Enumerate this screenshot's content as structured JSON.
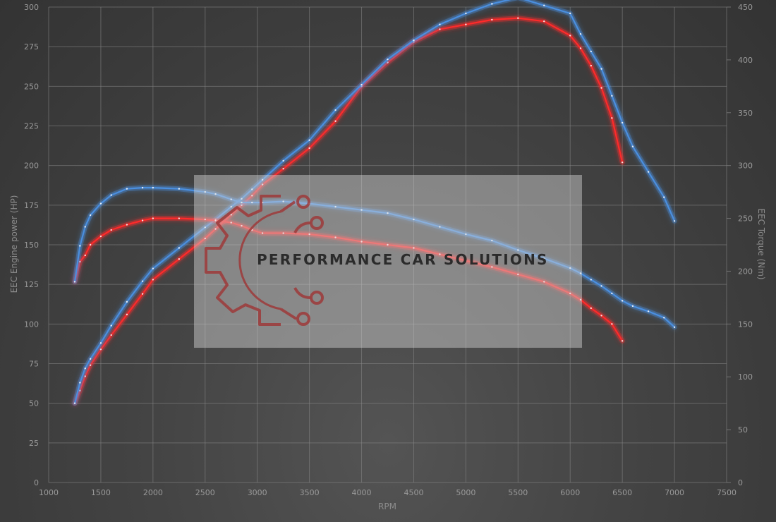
{
  "chart_data": {
    "type": "line",
    "xlabel": "RPM",
    "ylabel_left": "EEC Engine power (HP)",
    "ylabel_right": "EEC Torque (Nm)",
    "xlim": [
      1000,
      7500
    ],
    "ylim_left": [
      0,
      300
    ],
    "ylim_right": [
      0,
      450
    ],
    "x_ticks": [
      1000,
      1500,
      2000,
      2500,
      3000,
      3500,
      4000,
      4500,
      5000,
      5500,
      6000,
      6500,
      7000,
      7500
    ],
    "y_ticks_left": [
      0,
      25,
      50,
      75,
      100,
      125,
      150,
      175,
      200,
      225,
      250,
      275,
      300
    ],
    "y_ticks_right": [
      0,
      50,
      100,
      150,
      200,
      250,
      300,
      350,
      400,
      450
    ],
    "grid": true,
    "series": [
      {
        "color": "#ff2a2a",
        "axis": "left",
        "x": [
          1250,
          1300,
          1350,
          1400,
          1500,
          1600,
          1750,
          1900,
          2000,
          2250,
          2500,
          2600,
          2750,
          2850,
          2950,
          3050,
          3250,
          3500,
          3750,
          4000,
          4250,
          4500,
          4750,
          5000,
          5250,
          5500,
          5750,
          6000,
          6100,
          6200,
          6300,
          6400,
          6500
        ],
        "values": [
          50,
          58,
          67,
          74,
          84,
          93,
          106,
          119,
          128,
          141,
          154,
          160,
          169,
          175,
          181,
          188,
          198,
          211,
          228,
          250,
          265,
          278,
          286,
          289,
          292,
          293,
          291,
          282,
          274,
          263,
          249,
          230,
          202
        ]
      },
      {
        "color": "#4a8fe0",
        "axis": "left",
        "x": [
          1250,
          1300,
          1350,
          1400,
          1500,
          1600,
          1750,
          1900,
          2000,
          2250,
          2500,
          2600,
          2750,
          2850,
          2950,
          3050,
          3250,
          3500,
          3750,
          4000,
          4250,
          4500,
          4750,
          5000,
          5250,
          5500,
          5750,
          6000,
          6100,
          6200,
          6300,
          6400,
          6500,
          6600,
          6750,
          6900,
          7000
        ],
        "values": [
          50,
          63,
          72,
          78,
          88,
          99,
          114,
          127,
          135,
          148,
          161,
          166,
          174,
          179,
          185,
          191,
          203,
          216,
          235,
          251,
          267,
          279,
          289,
          296,
          302,
          306,
          301,
          296,
          283,
          272,
          261,
          244,
          227,
          212,
          196,
          180,
          165
        ]
      },
      {
        "color": "#ff2a2a",
        "axis": "right",
        "x": [
          1250,
          1300,
          1350,
          1400,
          1500,
          1600,
          1750,
          1900,
          2000,
          2250,
          2500,
          2600,
          2750,
          2850,
          2950,
          3050,
          3250,
          3500,
          3750,
          4000,
          4250,
          4500,
          4750,
          5000,
          5250,
          5500,
          5750,
          6000,
          6100,
          6200,
          6300,
          6400,
          6500
        ],
        "values": [
          190,
          209,
          215,
          225,
          233,
          239,
          244,
          248,
          250,
          250,
          249,
          248,
          246,
          243,
          239,
          236,
          236,
          235,
          232,
          228,
          225,
          222,
          216,
          210,
          204,
          197,
          190,
          179,
          173,
          165,
          158,
          150,
          134
        ]
      },
      {
        "color": "#4a8fe0",
        "axis": "right",
        "x": [
          1250,
          1300,
          1350,
          1400,
          1500,
          1600,
          1750,
          1900,
          2000,
          2250,
          2500,
          2600,
          2750,
          2850,
          2950,
          3050,
          3250,
          3500,
          3750,
          4000,
          4250,
          4500,
          4750,
          5000,
          5250,
          5500,
          5750,
          6000,
          6100,
          6200,
          6300,
          6400,
          6500,
          6600,
          6750,
          6900,
          7000
        ],
        "values": [
          190,
          224,
          242,
          253,
          264,
          272,
          278,
          279,
          279,
          278,
          275,
          273,
          268,
          265,
          265,
          265,
          266,
          264,
          261,
          258,
          255,
          249,
          242,
          235,
          229,
          220,
          212,
          203,
          198,
          192,
          186,
          179,
          172,
          167,
          162,
          156,
          147
        ]
      }
    ]
  },
  "watermark": {
    "text": "PERFORMANCE CAR SOLUTIONS",
    "icon": "gear-circuit-icon"
  }
}
